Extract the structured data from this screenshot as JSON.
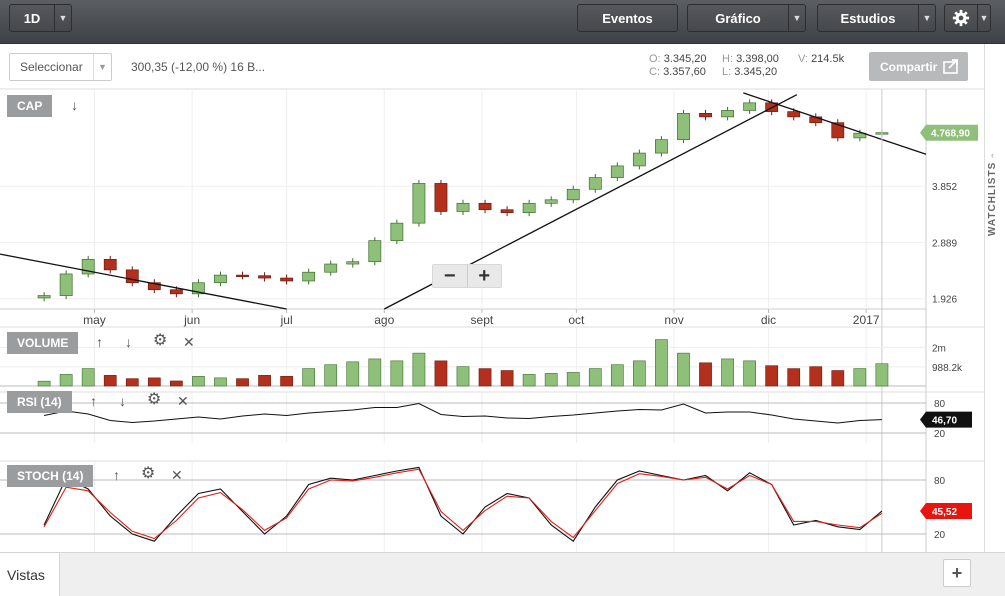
{
  "toolbar": {
    "period": "1D",
    "events": "Eventos",
    "chart": "Gráfico",
    "studies": "Estudios"
  },
  "selector": {
    "label": "Seleccionar"
  },
  "quote": {
    "text": "300,35 (-12,00 %) 16 B..."
  },
  "ohlc": {
    "o_label": "O:",
    "o": "3.345,20",
    "h_label": "H:",
    "h": "3.398,00",
    "v_label": "V:",
    "v": "214.5k",
    "c_label": "C:",
    "c": "3.357,60",
    "l_label": "L:",
    "l": "3.345,20"
  },
  "share": {
    "label": "Compartir"
  },
  "watchlists": {
    "label": "WATCHLISTS"
  },
  "bottom": {
    "vistas": "Vistas",
    "add": "+"
  },
  "colors": {
    "up": "#8fc07a",
    "down": "#b3301d",
    "up_edge": "#3c6e2c",
    "down_edge": "#6e1a10",
    "price_tag": "#8fc07a",
    "rsi_tag": "#111111",
    "stoch_tag": "#e8140f",
    "stoch_d": "#e0201a"
  },
  "panels": {
    "price": {
      "label": "CAP"
    },
    "volume": {
      "label": "VOLUME"
    },
    "rsi": {
      "label": "RSI (14)"
    },
    "stoch": {
      "label": "STOCH (14)"
    }
  },
  "chart_data": [
    {
      "type": "candlestick",
      "panel": "price",
      "x": [
        "2016-04-15",
        "2016-04-22",
        "2016-04-29",
        "2016-05-06",
        "2016-05-13",
        "2016-05-20",
        "2016-05-27",
        "2016-06-03",
        "2016-06-10",
        "2016-06-17",
        "2016-06-24",
        "2016-07-01",
        "2016-07-08",
        "2016-07-15",
        "2016-07-22",
        "2016-07-29",
        "2016-08-05",
        "2016-08-12",
        "2016-08-19",
        "2016-08-26",
        "2016-09-02",
        "2016-09-09",
        "2016-09-16",
        "2016-09-23",
        "2016-09-30",
        "2016-10-07",
        "2016-10-14",
        "2016-10-21",
        "2016-10-28",
        "2016-11-04",
        "2016-11-11",
        "2016-11-18",
        "2016-11-25",
        "2016-12-02",
        "2016-12-09",
        "2016-12-16",
        "2016-12-23",
        "2016-12-30",
        "2017-01-06"
      ],
      "close": [
        1980,
        2350,
        2600,
        2420,
        2200,
        2080,
        2010,
        2200,
        2330,
        2320,
        2280,
        2230,
        2380,
        2520,
        2560,
        2920,
        3220,
        3900,
        3420,
        3560,
        3450,
        3400,
        3560,
        3620,
        3800,
        4000,
        4200,
        4420,
        4650,
        5100,
        5040,
        5150,
        5280,
        5130,
        5040,
        4940,
        4680,
        4760,
        4769
      ],
      "xlabels": [
        "may",
        "jun",
        "jul",
        "ago",
        "sept",
        "oct",
        "nov",
        "dic",
        "2017"
      ],
      "xlabel_dates": [
        "2016-05-01",
        "2016-06-01",
        "2016-07-01",
        "2016-08-01",
        "2016-09-01",
        "2016-10-01",
        "2016-11-01",
        "2016-12-01",
        "2017-01-01"
      ],
      "y_ticks": [
        "3.852",
        "2.889",
        "1.926"
      ],
      "y_tick_values": [
        3852,
        2889,
        1926
      ],
      "ylim": [
        1750,
        5500
      ],
      "last_value_label": "4.768,90",
      "trendlines": [
        {
          "from": [
            "2016-04-01",
            2690
          ],
          "to": [
            "2016-07-01",
            1750
          ]
        },
        {
          "from": [
            "2016-08-01",
            1750
          ],
          "to": [
            "2016-12-10",
            5420
          ]
        },
        {
          "from": [
            "2016-11-23",
            5450
          ],
          "to": [
            "2017-01-20",
            4400
          ]
        }
      ]
    },
    {
      "type": "bar",
      "panel": "volume",
      "y_ticks": [
        "2m",
        "988.2k"
      ],
      "y_tick_values": [
        2000000,
        988200
      ],
      "ylim": [
        0,
        3000000
      ],
      "values": [
        250000,
        600000,
        900000,
        550000,
        380000,
        420000,
        260000,
        500000,
        420000,
        380000,
        550000,
        500000,
        900000,
        1100000,
        1250000,
        1400000,
        1300000,
        1700000,
        1300000,
        1000000,
        900000,
        800000,
        600000,
        650000,
        700000,
        900000,
        1100000,
        1300000,
        2400000,
        1700000,
        1200000,
        1400000,
        1300000,
        1050000,
        900000,
        1000000,
        800000,
        900000,
        1150000
      ]
    },
    {
      "type": "line",
      "panel": "rsi",
      "y_ticks": [
        "80",
        "20"
      ],
      "y_tick_values": [
        80,
        20
      ],
      "ylim": [
        0,
        100
      ],
      "last_value_label": "46,70",
      "values": [
        55,
        64,
        58,
        45,
        41,
        44,
        48,
        52,
        48,
        54,
        58,
        55,
        60,
        63,
        66,
        71,
        71,
        79,
        57,
        53,
        54,
        50,
        49,
        53,
        56,
        60,
        64,
        67,
        66,
        78,
        60,
        62,
        62,
        56,
        48,
        44,
        40,
        45,
        46.7
      ]
    },
    {
      "type": "line",
      "panel": "stoch",
      "y_ticks": [
        "80",
        "20"
      ],
      "y_tick_values": [
        80,
        20
      ],
      "ylim": [
        0,
        100
      ],
      "last_value_label": "45,52",
      "series": [
        {
          "values": [
            30,
            82,
            70,
            40,
            20,
            12,
            40,
            65,
            70,
            45,
            20,
            40,
            75,
            82,
            80,
            85,
            90,
            94,
            40,
            20,
            50,
            65,
            60,
            30,
            12,
            50,
            80,
            90,
            85,
            80,
            85,
            68,
            88,
            75,
            30,
            35,
            28,
            25,
            45.5
          ]
        },
        {
          "values": [
            28,
            72,
            68,
            44,
            23,
            15,
            35,
            60,
            66,
            47,
            24,
            38,
            70,
            80,
            79,
            83,
            88,
            92,
            45,
            24,
            46,
            62,
            60,
            34,
            16,
            46,
            76,
            87,
            84,
            80,
            83,
            70,
            85,
            75,
            34,
            34,
            30,
            27,
            43
          ]
        }
      ]
    }
  ]
}
